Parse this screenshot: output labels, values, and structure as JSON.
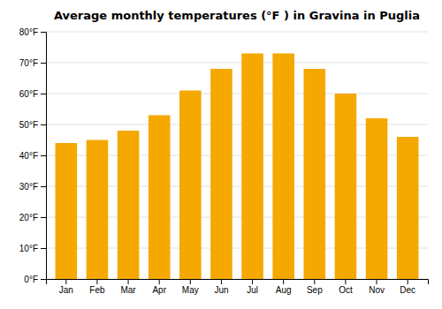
{
  "chart_data": {
    "type": "bar",
    "title": "Average monthly temperatures (°F ) in Gravina in Puglia",
    "categories": [
      "Jan",
      "Feb",
      "Mar",
      "Apr",
      "May",
      "Jun",
      "Jul",
      "Aug",
      "Sep",
      "Oct",
      "Nov",
      "Dec"
    ],
    "values": [
      44,
      45,
      48,
      53,
      61,
      68,
      73,
      73,
      68,
      60,
      52,
      46
    ],
    "color": "#F5A800",
    "ylim": [
      0,
      80
    ],
    "yticks": [
      {
        "value": 0,
        "label": "0°F"
      },
      {
        "value": 10,
        "label": "10°F"
      },
      {
        "value": 20,
        "label": "20°F"
      },
      {
        "value": 30,
        "label": "30°F"
      },
      {
        "value": 40,
        "label": "40°F"
      },
      {
        "value": 50,
        "label": "50°F"
      },
      {
        "value": 60,
        "label": "60°F"
      },
      {
        "value": 70,
        "label": "70°F"
      },
      {
        "value": 80,
        "label": "80°F"
      }
    ],
    "grid": true
  }
}
